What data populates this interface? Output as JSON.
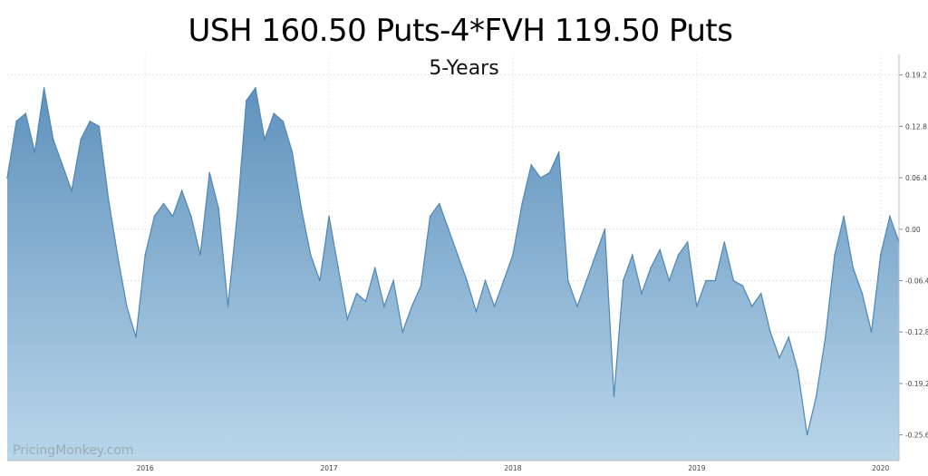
{
  "chart_data": {
    "type": "area",
    "title": "USH 160.50 Puts-4*FVH 119.50 Puts",
    "subtitle": "5-Years",
    "watermark": "PricingMonkey.com",
    "x_ticks": [
      "2016",
      "2017",
      "2018",
      "2019",
      "2020"
    ],
    "y_ticks": [
      "0.19.2",
      "0.12.8",
      "0.06.4",
      "0.00",
      "-0.06.4",
      "-0.12.8",
      "-0.19.2",
      "-0.25.6"
    ],
    "y_tick_values": [
      0.6,
      0.4,
      0.2,
      0.0,
      -0.2,
      -0.4,
      -0.6,
      -0.8
    ],
    "ylim": [
      -0.9,
      0.68
    ],
    "grid": true,
    "line_color": "#4f86b4",
    "fill_top_color": "#5f92bd",
    "fill_bottom_color": "#b9d6ea",
    "series": [
      {
        "x": [
          2015.25,
          2015.3,
          2015.35,
          2015.4,
          2015.45,
          2015.5,
          2015.55,
          2015.6,
          2015.65,
          2015.7,
          2015.75,
          2015.8,
          2015.85,
          2015.9,
          2015.95,
          2016.0,
          2016.05,
          2016.1,
          2016.15,
          2016.2,
          2016.25,
          2016.3,
          2016.35,
          2016.4,
          2016.45,
          2016.5,
          2016.55,
          2016.6,
          2016.65,
          2016.7,
          2016.75,
          2016.8,
          2016.85,
          2016.9,
          2016.95,
          2017.0,
          2017.05,
          2017.1,
          2017.15,
          2017.2,
          2017.25,
          2017.3,
          2017.35,
          2017.4,
          2017.45,
          2017.5,
          2017.55,
          2017.6,
          2017.65,
          2017.7,
          2017.75,
          2017.8,
          2017.85,
          2017.9,
          2017.95,
          2018.0,
          2018.05,
          2018.1,
          2018.15,
          2018.2,
          2018.25,
          2018.3,
          2018.35,
          2018.4,
          2018.45,
          2018.5,
          2018.55,
          2018.6,
          2018.65,
          2018.7,
          2018.75,
          2018.8,
          2018.85,
          2018.9,
          2018.95,
          2019.0,
          2019.05,
          2019.1,
          2019.15,
          2019.2,
          2019.25,
          2019.3,
          2019.35,
          2019.4,
          2019.45,
          2019.5,
          2019.55,
          2019.6,
          2019.65,
          2019.7,
          2019.75,
          2019.8,
          2019.85,
          2019.9,
          2019.95,
          2020.0,
          2020.05,
          2020.1
        ],
        "values": [
          0.2,
          0.42,
          0.45,
          0.3,
          0.55,
          0.35,
          0.25,
          0.15,
          0.35,
          0.42,
          0.4,
          0.12,
          -0.1,
          -0.3,
          -0.42,
          -0.1,
          0.05,
          0.1,
          0.05,
          0.15,
          0.05,
          -0.1,
          0.22,
          0.08,
          -0.3,
          0.05,
          0.5,
          0.55,
          0.35,
          0.45,
          0.42,
          0.3,
          0.08,
          -0.1,
          -0.2,
          0.05,
          -0.15,
          -0.35,
          -0.25,
          -0.28,
          -0.15,
          -0.3,
          -0.2,
          -0.4,
          -0.3,
          -0.22,
          0.05,
          0.1,
          0.0,
          -0.1,
          -0.2,
          -0.32,
          -0.2,
          -0.3,
          -0.2,
          -0.1,
          0.1,
          0.25,
          0.2,
          0.22,
          0.3,
          -0.2,
          -0.3,
          -0.2,
          -0.1,
          0.0,
          -0.65,
          -0.2,
          -0.1,
          -0.25,
          -0.15,
          -0.08,
          -0.2,
          -0.1,
          -0.05,
          -0.3,
          -0.2,
          -0.2,
          -0.05,
          -0.2,
          -0.22,
          -0.3,
          -0.25,
          -0.4,
          -0.5,
          -0.42,
          -0.55,
          -0.8,
          -0.65,
          -0.42,
          -0.1,
          0.05,
          -0.15,
          -0.25,
          -0.4,
          -0.1,
          0.05,
          -0.05
        ]
      }
    ]
  }
}
